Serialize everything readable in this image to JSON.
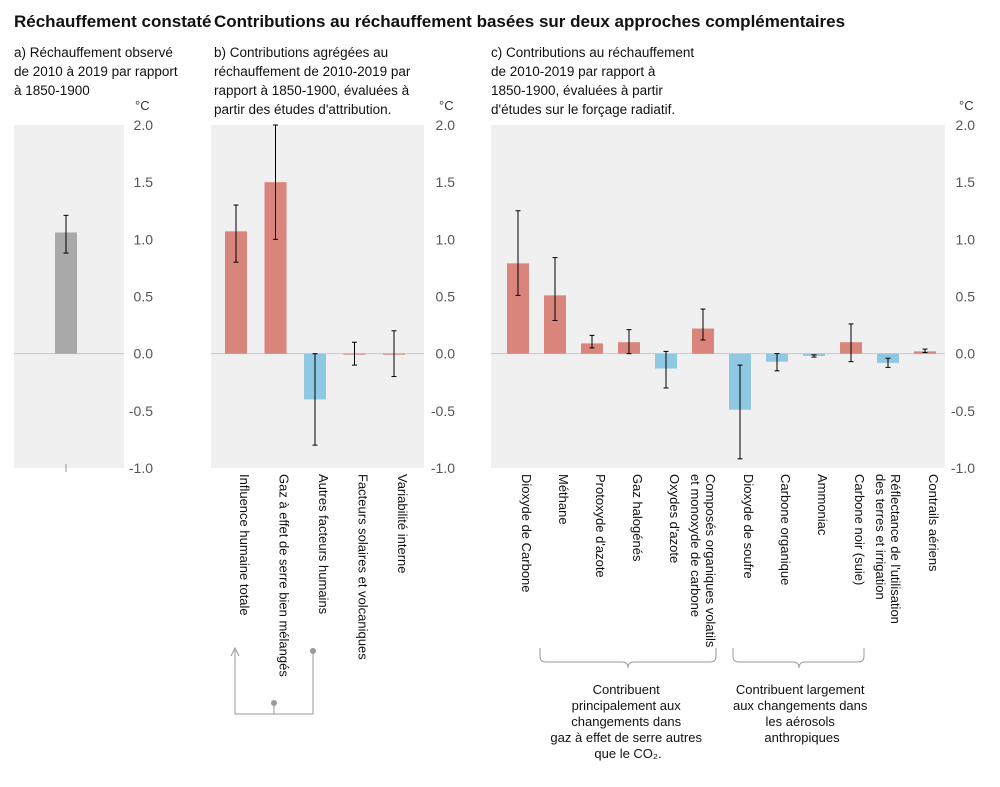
{
  "title_observed": "Réchauffement constaté",
  "title_contributions": "Contributions au réchauffement basées sur deux approches complémentaires",
  "panel_a": {
    "subtitle": [
      "a) Réchauffement observé",
      "de 2010 à 2019 par rapport",
      "à 1850-1900"
    ]
  },
  "panel_b": {
    "subtitle": [
      "b) Contributions agrégées au",
      "réchauffement de 2010-2019 par",
      "rapport à 1850-1900, évaluées à",
      "partir des études d'attribution."
    ]
  },
  "panel_c": {
    "subtitle": [
      "c) Contributions au réchauffement",
      "de 2010-2019 par rapport à",
      "1850-1900, évaluées à partir",
      "d'études sur le forçage radiatif."
    ]
  },
  "unit": "°C",
  "annotations": {
    "group_ghg": [
      "Contribuent",
      "principalement aux",
      "changements dans",
      "gaz à effet de serre autres",
      "que le CO₂."
    ],
    "group_aerosol": [
      "Contribuent largement",
      "aux changements dans",
      "les aérosols",
      "anthropiques"
    ]
  },
  "colors": {
    "observed": "#a9a9a9",
    "warming": "#d9857b",
    "cooling": "#8ec8e2",
    "panel_background": "#f0f0f0"
  },
  "chart_data": [
    {
      "type": "bar",
      "id": "a",
      "ylim": [
        -1.0,
        2.0
      ],
      "yticks": [
        "2.0",
        "1.5",
        "1.0",
        "0.5",
        "0.0",
        "-0.5",
        "-1.0"
      ],
      "categories": [
        ""
      ],
      "series": [
        {
          "values": [
            1.06
          ],
          "err_low": [
            0.88
          ],
          "err_high": [
            1.21
          ],
          "colors": [
            "observed"
          ]
        }
      ]
    },
    {
      "type": "bar",
      "id": "b",
      "ylim": [
        -1.0,
        2.0
      ],
      "yticks": [
        "2.0",
        "1.5",
        "1.0",
        "0.5",
        "0.0",
        "-0.5",
        "-1.0"
      ],
      "categories": [
        "Influence humaine totale",
        "Gaz à effet de serre bien mélangés",
        "Autres facteurs humains",
        "Facteurs solaires et volcaniques",
        "Variabilité interne"
      ],
      "series": [
        {
          "values": [
            1.07,
            1.5,
            -0.4,
            0.0,
            0.0
          ],
          "err_low": [
            0.8,
            1.0,
            -0.8,
            -0.1,
            -0.2
          ],
          "err_high": [
            1.3,
            2.0,
            0.0,
            0.1,
            0.2
          ],
          "colors": [
            "warming",
            "warming",
            "cooling",
            "warming",
            "warming"
          ]
        }
      ]
    },
    {
      "type": "bar",
      "id": "c",
      "ylim": [
        -1.0,
        2.0
      ],
      "yticks": [
        "2.0",
        "1.5",
        "1.0",
        "0.5",
        "0.0",
        "-0.5",
        "-1.0"
      ],
      "categories": [
        "Dioxyde de Carbone",
        "Méthane",
        "Protoxyde d'azote",
        "Gaz halogénés",
        "Oxydes d'azote",
        "Composés organiques volatils\net monoxyde de carbone",
        "Dioxyde de soufre",
        "Carbone organique",
        "Ammoniac",
        "Carbone noir (suie)",
        "Réflectance de l'utilisation\ndes terres et irrigation",
        "Contrails aériens"
      ],
      "series": [
        {
          "values": [
            0.79,
            0.51,
            0.09,
            0.1,
            -0.13,
            0.22,
            -0.49,
            -0.07,
            -0.02,
            0.1,
            -0.08,
            0.02
          ],
          "err_low": [
            0.51,
            0.29,
            0.05,
            0.0,
            -0.3,
            0.12,
            -0.92,
            -0.15,
            -0.03,
            -0.07,
            -0.12,
            0.01
          ],
          "err_high": [
            1.25,
            0.84,
            0.16,
            0.21,
            0.02,
            0.39,
            -0.1,
            0.0,
            -0.01,
            0.26,
            -0.04,
            0.04
          ],
          "colors": [
            "warming",
            "warming",
            "warming",
            "warming",
            "cooling",
            "warming",
            "cooling",
            "cooling",
            "cooling",
            "warming",
            "cooling",
            "warming"
          ]
        }
      ]
    }
  ]
}
